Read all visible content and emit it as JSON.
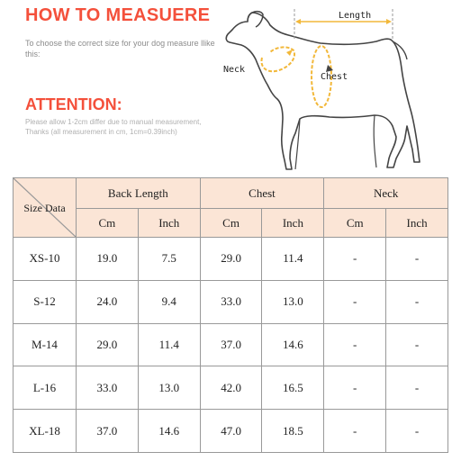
{
  "header": {
    "title": "HOW TO MEASUERE",
    "subtitle": "To choose the correct size for your dog measure llike this:",
    "attention_title": "ATTENTION:",
    "attention_line1": "Please allow 1-2cm differ due to manual measurement,",
    "attention_line2": "Thanks (all measurement in cm, 1cm=0.39inch)"
  },
  "diagram": {
    "length_label": "Length",
    "neck_label": "Neck",
    "chest_label": "Chest",
    "accent_color": "#f2b83a"
  },
  "table": {
    "corner_label": "Size Data",
    "groups": [
      "Back Length",
      "Chest",
      "Neck"
    ],
    "units": [
      "Cm",
      "Inch",
      "Cm",
      "Inch",
      "Cm",
      "Inch"
    ],
    "rows": [
      {
        "size": "XS-10",
        "values": [
          "19.0",
          "7.5",
          "29.0",
          "11.4",
          "-",
          "-"
        ]
      },
      {
        "size": "S-12",
        "values": [
          "24.0",
          "9.4",
          "33.0",
          "13.0",
          "-",
          "-"
        ]
      },
      {
        "size": "M-14",
        "values": [
          "29.0",
          "11.4",
          "37.0",
          "14.6",
          "-",
          "-"
        ]
      },
      {
        "size": "L-16",
        "values": [
          "33.0",
          "13.0",
          "42.0",
          "16.5",
          "-",
          "-"
        ]
      },
      {
        "size": "XL-18",
        "values": [
          "37.0",
          "14.6",
          "47.0",
          "18.5",
          "-",
          "-"
        ]
      }
    ]
  }
}
